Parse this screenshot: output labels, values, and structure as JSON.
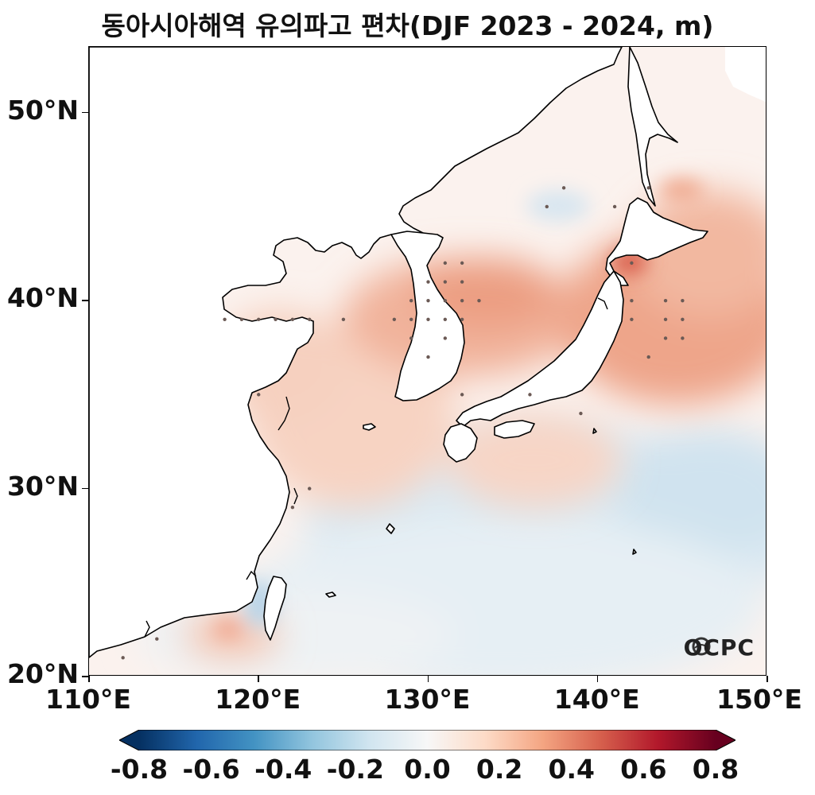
{
  "title": "동아시아해역 유의파고 편차(DJF 2023 - 2024, m)",
  "map": {
    "region": "East Asia seas",
    "lon_range": [
      110,
      150
    ],
    "lat_range": [
      20,
      53.5
    ],
    "x_ticks": [
      "110°E",
      "120°E",
      "130°E",
      "140°E",
      "150°E"
    ],
    "y_ticks": [
      "50°N",
      "40°N",
      "30°N",
      "20°N"
    ],
    "logo_text": "OCPC",
    "colormap": "RdBu_r"
  },
  "colorbar": {
    "ticks": [
      "-0.8",
      "-0.6",
      "-0.4",
      "-0.2",
      "0.0",
      "0.2",
      "0.4",
      "0.6",
      "0.8"
    ],
    "min": -0.8,
    "max": 0.8,
    "colors": [
      "#053061",
      "#2166ac",
      "#4393c3",
      "#92c5de",
      "#d1e5f0",
      "#f7f7f7",
      "#fddbc7",
      "#f4a582",
      "#d6604d",
      "#b2182b",
      "#67001f"
    ]
  }
}
